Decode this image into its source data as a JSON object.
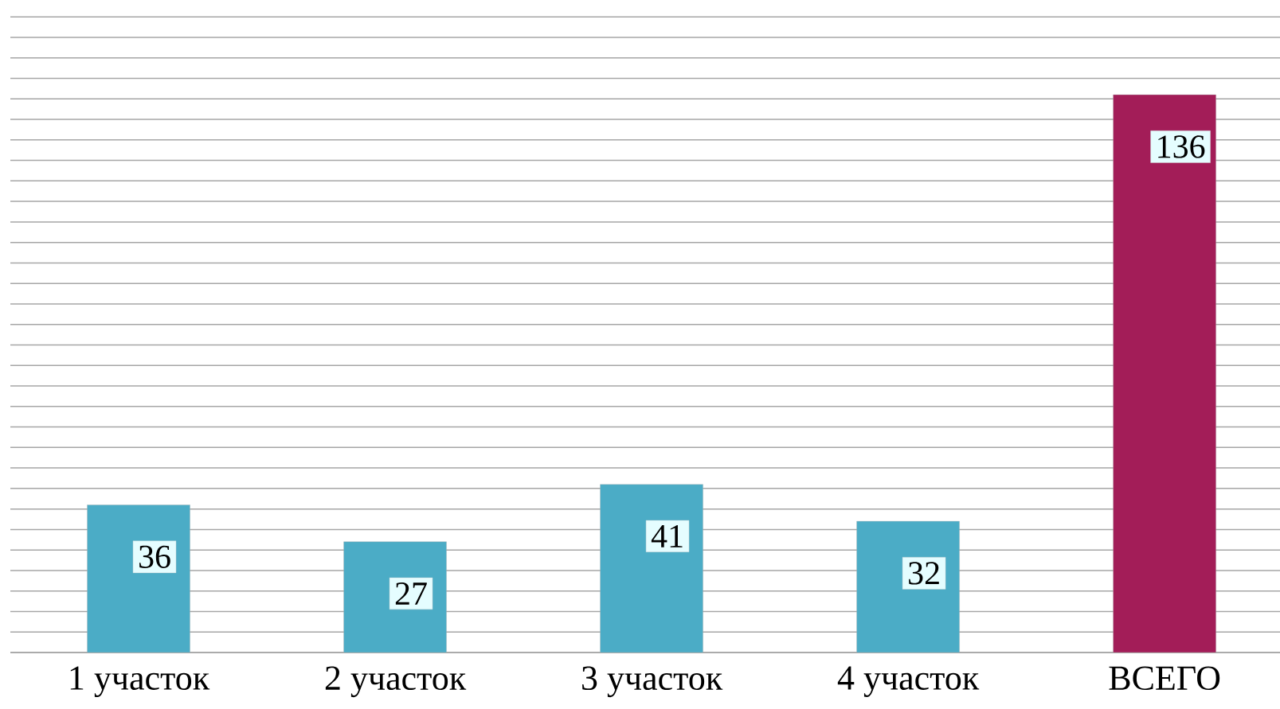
{
  "chart_data": {
    "type": "bar",
    "categories": [
      "1 участок",
      "2 участок",
      "3 участок",
      "4 участок",
      "ВСЕГО"
    ],
    "values": [
      36,
      27,
      41,
      32,
      136
    ],
    "colors": [
      "#4bacc6",
      "#4bacc6",
      "#4bacc6",
      "#4bacc6",
      "#a31d58"
    ],
    "tick_labels": "x",
    "grid": "y",
    "data_labels": true
  }
}
